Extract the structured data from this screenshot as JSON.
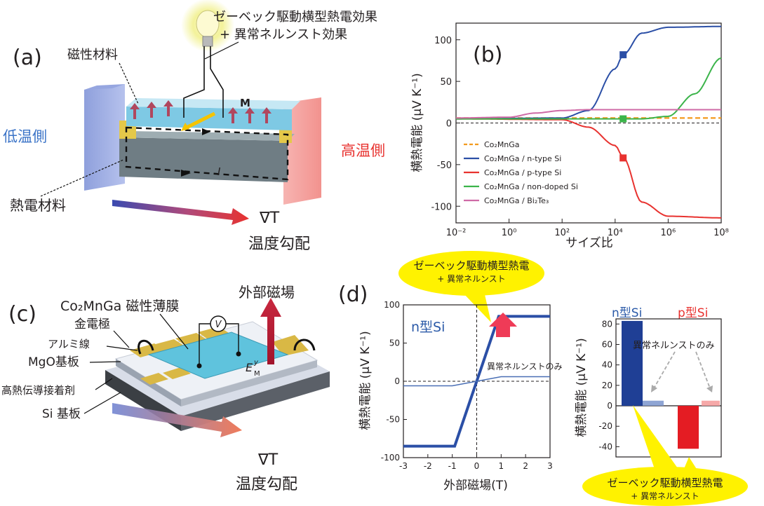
{
  "panel_a": {
    "label": "(a)",
    "effect_line1": "ゼーベック駆動横型熱電効果",
    "effect_line2": "+ 異常ネルンスト効果",
    "magnetic_material": "磁性材料",
    "thermoelectric_material": "熱電材料",
    "cold_side": "低温側",
    "hot_side": "高温側",
    "magnetization": "M",
    "current": "I",
    "grad_t": "∇T",
    "gradient_label": "温度勾配",
    "colors": {
      "cold": "#3a73c7",
      "hot": "#e8322f"
    }
  },
  "panel_b": {
    "label": "(b)",
    "xlabel": "サイズ比",
    "ylabel": "横熱電能 (μV K⁻¹)",
    "x_ticks": [
      "10⁻²",
      "10⁰",
      "10²",
      "10⁴",
      "10⁶",
      "10⁸"
    ],
    "y_ticks": [
      "100",
      "50",
      "0",
      "-50",
      "-100"
    ],
    "legend": [
      "Co₂MnGa",
      "Co₂MnGa / n-type Si",
      "Co₂MnGa / p-type Si",
      "Co₂MnGa / non-doped Si",
      "Co₂MnGa / Bi₂Te₃"
    ]
  },
  "panel_c": {
    "label": "(c)",
    "film": "Co₂MnGa 磁性薄膜",
    "electrode": "金電極",
    "al_wire": "アルミ線",
    "mgo": "MgO基板",
    "adhesive": "高熱伝導接着剤",
    "si": "Si 基板",
    "field": "外部磁場",
    "voltmeter": "V",
    "e_field": "E",
    "e_sub": "M",
    "e_sup": "y",
    "grad_t": "∇T",
    "gradient_label": "温度勾配"
  },
  "panel_d": {
    "label": "(d)",
    "callout_top_line1": "ゼーベック駆動横型熱電",
    "callout_top_line2": "+ 異常ネルンスト",
    "ntype_label": "n型Si",
    "ane_only_small": "異常ネルンストのみ",
    "xlabel": "外部磁場(T)",
    "ylabel": "横熱電能 (μV K⁻¹)",
    "x_ticks": [
      "-3",
      "-2",
      "-1",
      "0",
      "1",
      "2",
      "3"
    ],
    "y_ticks": [
      "100",
      "50",
      "0",
      "-50",
      "-100"
    ],
    "bar_n_label": "n型Si",
    "bar_p_label": "p型Si",
    "ane_only": "異常ネルンストのみ",
    "bar_ylabel": "横熱電能 (μV K⁻¹)",
    "bar_y_ticks": [
      "80",
      "60",
      "40",
      "20",
      "0",
      "-20",
      "-40"
    ],
    "callout_bottom_line1": "ゼーベック駆動横型熱電",
    "callout_bottom_line2": "+ 異常ネルンスト"
  },
  "chart_data": [
    {
      "type": "line",
      "xlabel": "サイズ比",
      "ylabel": "横熱電能 (μV K⁻¹)",
      "x_scale": "log",
      "xlim": [
        0.01,
        100000000
      ],
      "ylim": [
        -120,
        120
      ],
      "series": [
        {
          "name": "Co₂MnGa",
          "color": "#f39a1d",
          "x": [
            0.01,
            100000000
          ],
          "y": [
            6,
            6
          ]
        },
        {
          "name": "Co₂MnGa / n-type Si",
          "color": "#2b4fa6",
          "x": [
            0.01,
            100,
            1000,
            10000,
            20000,
            100000,
            1000000,
            100000000
          ],
          "y": [
            5,
            6,
            15,
            65,
            82,
            108,
            115,
            116
          ]
        },
        {
          "name": "Co₂MnGa / p-type Si",
          "color": "#e8322f",
          "x": [
            0.01,
            100,
            1000,
            10000,
            20000,
            100000,
            1000000,
            100000000
          ],
          "y": [
            5,
            4,
            -5,
            -27,
            -41,
            -95,
            -112,
            -114
          ]
        },
        {
          "name": "Co₂MnGa / non-doped Si",
          "color": "#3bb44a",
          "x": [
            0.01,
            100000,
            1000000,
            10000000,
            100000000
          ],
          "y": [
            5,
            5,
            8,
            35,
            78
          ]
        },
        {
          "name": "Co₂MnGa / Bi₂Te₃",
          "color": "#cf6aa6",
          "x": [
            0.01,
            1,
            10,
            100,
            1000,
            100000000
          ],
          "y": [
            6,
            7,
            12,
            15,
            16,
            16
          ]
        }
      ],
      "markers": [
        {
          "x": 20000,
          "y": 82,
          "color": "#2b4fa6"
        },
        {
          "x": 20000,
          "y": 5,
          "color": "#3bb44a"
        },
        {
          "x": 20000,
          "y": -42,
          "color": "#e8322f"
        }
      ]
    },
    {
      "type": "line",
      "xlabel": "外部磁場(T)",
      "ylabel": "横熱電能 (μV K⁻¹)",
      "xlim": [
        -3,
        3
      ],
      "ylim": [
        -100,
        100
      ],
      "series": [
        {
          "name": "n型Si",
          "color": "#2b4fa6",
          "x": [
            -3,
            -0.9,
            0.9,
            3
          ],
          "y": [
            -85,
            -85,
            85,
            85
          ]
        },
        {
          "name": "異常ネルンストのみ",
          "color": "#4a6fb5",
          "x": [
            -3,
            -1,
            1,
            3
          ],
          "y": [
            -6,
            -6,
            6,
            6
          ]
        }
      ]
    },
    {
      "type": "bar",
      "ylabel": "横熱電能 (μV K⁻¹)",
      "ylim": [
        -50,
        85
      ],
      "categories": [
        "n型Si",
        "n型Si ANE",
        "p型Si",
        "p型Si ANE"
      ],
      "values": [
        83,
        5,
        -42,
        5
      ],
      "colors": [
        "#1f3f95",
        "#7b95cc",
        "#e41c23",
        "#f49a9a"
      ]
    }
  ]
}
